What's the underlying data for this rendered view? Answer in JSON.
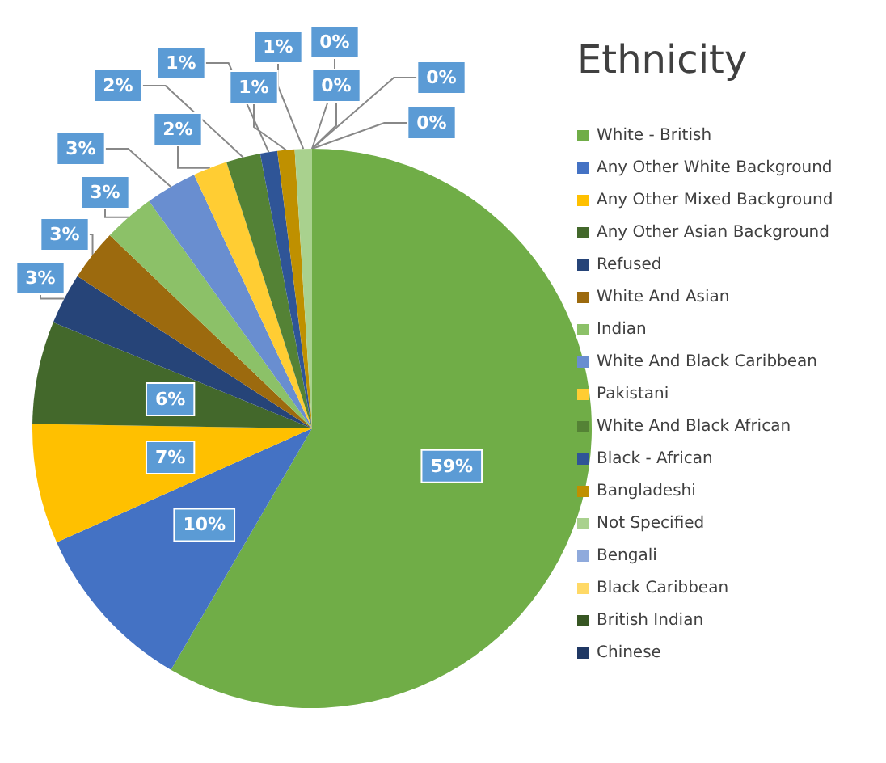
{
  "chart_data": {
    "type": "pie",
    "legend_title": "Ethnicity",
    "categories": [
      "White - British",
      "Any Other White Background",
      "Any Other Mixed Background",
      "Any Other Asian Background",
      "Refused",
      "White And Asian",
      "Indian",
      "White And Black Caribbean",
      "Pakistani",
      "White And Black African",
      "Black - African",
      "Bangladeshi",
      "Not Specified",
      "Bengali",
      "Black Caribbean",
      "British Indian",
      "Chinese"
    ],
    "values": [
      59,
      10,
      7,
      6,
      3,
      3,
      3,
      3,
      2,
      2,
      1,
      1,
      1,
      0,
      0,
      0,
      0
    ],
    "value_labels": [
      "59%",
      "10%",
      "7%",
      "6%",
      "3%",
      "3%",
      "3%",
      "3%",
      "2%",
      "2%",
      "1%",
      "1%",
      "1%",
      "0%",
      "0%",
      "0%",
      "0%"
    ],
    "colors": [
      "#70ad47",
      "#4472c4",
      "#ffc000",
      "#43682b",
      "#264478",
      "#9c6a0e",
      "#8cc168",
      "#698ed0",
      "#ffcd33",
      "#548235",
      "#2f5597",
      "#bf9000",
      "#a9d18e",
      "#8faadc",
      "#ffd966",
      "#375623",
      "#1f3864"
    ],
    "legend": "right"
  }
}
